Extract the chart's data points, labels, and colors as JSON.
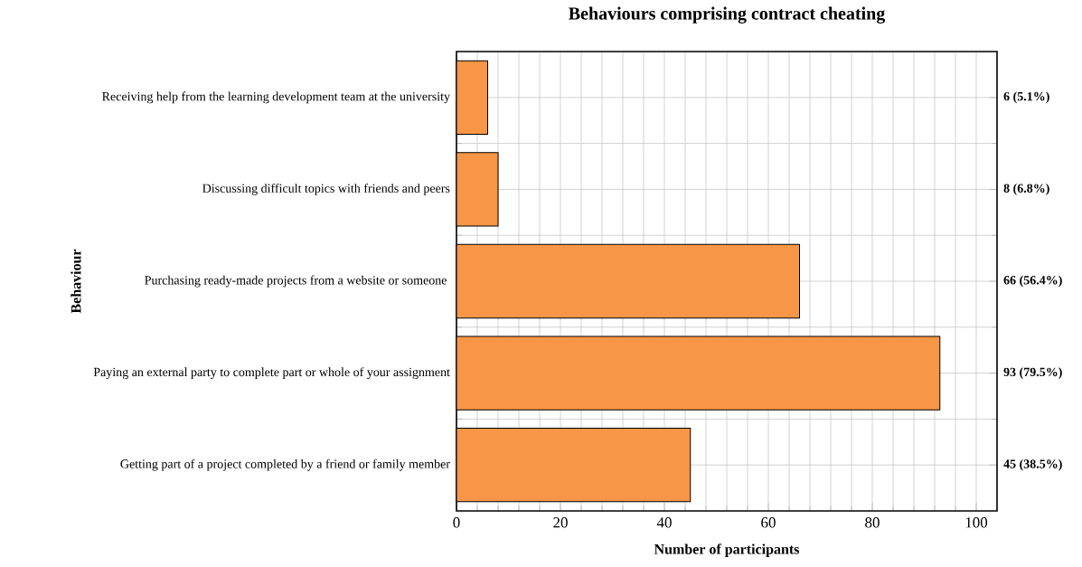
{
  "chart_data": {
    "type": "bar",
    "orientation": "horizontal",
    "title": "Behaviours comprising contract cheating",
    "xlabel": "Number of participants",
    "ylabel": "Behaviour",
    "categories": [
      "Receiving help from the learning development team at the university",
      "Discussing difficult topics with friends and peers",
      "Purchasing ready-made projects from a website or someone ",
      "Paying an external party to complete part or whole of your assignment",
      "Getting part of a project completed by a friend or family member"
    ],
    "values": [
      6,
      8,
      66,
      93,
      45
    ],
    "value_labels": [
      "6 (5.1%)",
      "8 (6.8%)",
      "66 (56.4%)",
      "93 (79.5%)",
      "45 (38.5%)"
    ],
    "color": "#f79646",
    "xlim": [
      0,
      104
    ],
    "xticks": [
      0,
      20,
      40,
      60,
      80,
      100
    ],
    "grid": true
  }
}
